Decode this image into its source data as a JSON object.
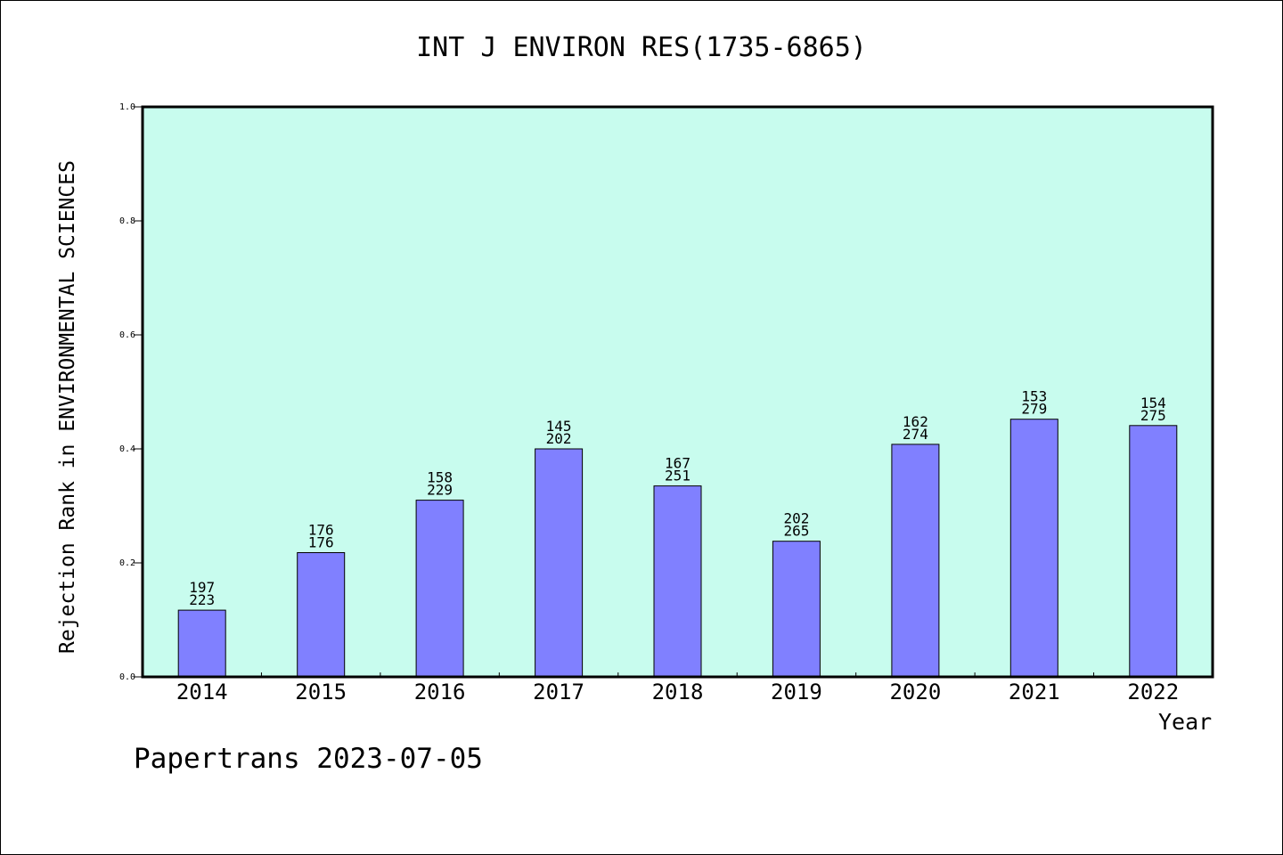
{
  "chart_data": {
    "type": "bar",
    "title": "INT J ENVIRON RES(1735-6865)",
    "xlabel": "Year",
    "ylabel": "Rejection Rank in ENVIRONMENTAL SCIENCES",
    "ylim": [
      0,
      1.0
    ],
    "yticks": [
      "0.0",
      "0.2",
      "0.4",
      "0.6",
      "0.8",
      "1.0"
    ],
    "ytick_values": [
      0,
      0.2,
      0.4,
      0.6,
      0.8,
      1.0
    ],
    "categories": [
      "2014",
      "2015",
      "2016",
      "2017",
      "2018",
      "2019",
      "2020",
      "2021",
      "2022"
    ],
    "values": [
      0.117,
      0.218,
      0.31,
      0.4,
      0.335,
      0.238,
      0.408,
      0.452,
      0.441
    ],
    "label_top": [
      "197",
      "176",
      "158",
      "145",
      "167",
      "202",
      "162",
      "153",
      "154"
    ],
    "label_bottom": [
      "223",
      "176",
      "229",
      "202",
      "251",
      "265",
      "274",
      "279",
      "275"
    ],
    "grid": false,
    "colors": {
      "plot_bg": "#c8fcee",
      "bar": "#8080ff",
      "bar_edge": "#000000"
    }
  },
  "footer": "Papertrans 2023-07-05"
}
